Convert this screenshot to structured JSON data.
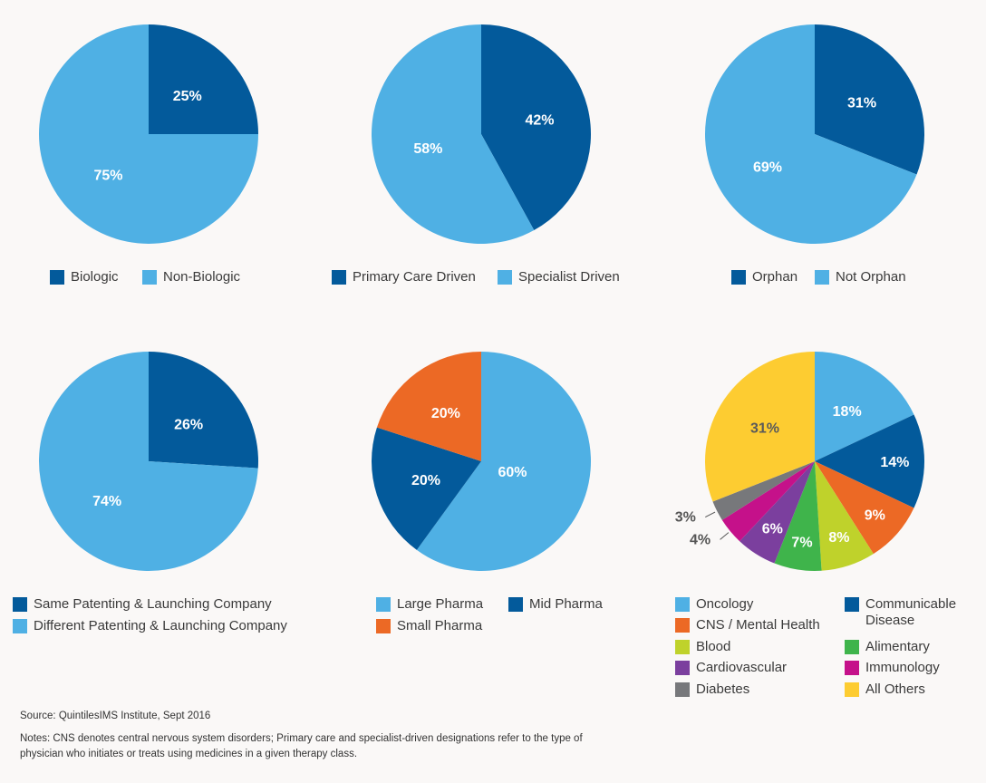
{
  "chart_data": [
    {
      "type": "pie",
      "slices": [
        {
          "label": "Biologic",
          "value": 25,
          "text": "25%",
          "color": "#035a9b"
        },
        {
          "label": "Non-Biologic",
          "value": 75,
          "text": "75%",
          "color": "#4fb0e4"
        }
      ]
    },
    {
      "type": "pie",
      "slices": [
        {
          "label": "Primary Care Driven",
          "value": 42,
          "text": "42%",
          "color": "#035a9b"
        },
        {
          "label": "Specialist Driven",
          "value": 58,
          "text": "58%",
          "color": "#4fb0e4"
        }
      ]
    },
    {
      "type": "pie",
      "slices": [
        {
          "label": "Orphan",
          "value": 31,
          "text": "31%",
          "color": "#035a9b"
        },
        {
          "label": "Not Orphan",
          "value": 69,
          "text": "69%",
          "color": "#4fb0e4"
        }
      ]
    },
    {
      "type": "pie",
      "slices": [
        {
          "label": "Same Patenting & Launching Company",
          "value": 26,
          "text": "26%",
          "color": "#035a9b"
        },
        {
          "label": "Different Patenting & Launching Company",
          "value": 74,
          "text": "74%",
          "color": "#4fb0e4"
        }
      ]
    },
    {
      "type": "pie",
      "slices": [
        {
          "label": "Large Pharma",
          "value": 60,
          "text": "60%",
          "color": "#4fb0e4"
        },
        {
          "label": "Mid Pharma",
          "value": 20,
          "text": "20%",
          "color": "#035a9b"
        },
        {
          "label": "Small Pharma",
          "value": 20,
          "text": "20%",
          "color": "#ec6925"
        }
      ]
    },
    {
      "type": "pie",
      "slices": [
        {
          "label": "Oncology",
          "value": 18,
          "text": "18%",
          "color": "#4fb0e4"
        },
        {
          "label": "Communicable Disease",
          "value": 14,
          "text": "14%",
          "color": "#035a9b"
        },
        {
          "label": "CNS / Mental Health",
          "value": 9,
          "text": "9%",
          "color": "#ec6925"
        },
        {
          "label": "Blood",
          "value": 8,
          "text": "8%",
          "color": "#bfd22b"
        },
        {
          "label": "Alimentary",
          "value": 7,
          "text": "7%",
          "color": "#3fb44b"
        },
        {
          "label": "Cardiovascular",
          "value": 6,
          "text": "6%",
          "color": "#7b3f9e"
        },
        {
          "label": "Immunology",
          "value": 4,
          "text": "4%",
          "color": "#c5118a"
        },
        {
          "label": "Diabetes",
          "value": 3,
          "text": "3%",
          "color": "#77787b"
        },
        {
          "label": "All Others",
          "value": 31,
          "text": "31%",
          "color": "#fdcc31"
        }
      ]
    }
  ],
  "source": "Source: QuintilesIMS Institute, Sept 2016",
  "notes": "Notes: CNS denotes central nervous system disorders; Primary care and specialist-driven designations refer to the type of physician who initiates or treats using medicines in a given therapy class."
}
